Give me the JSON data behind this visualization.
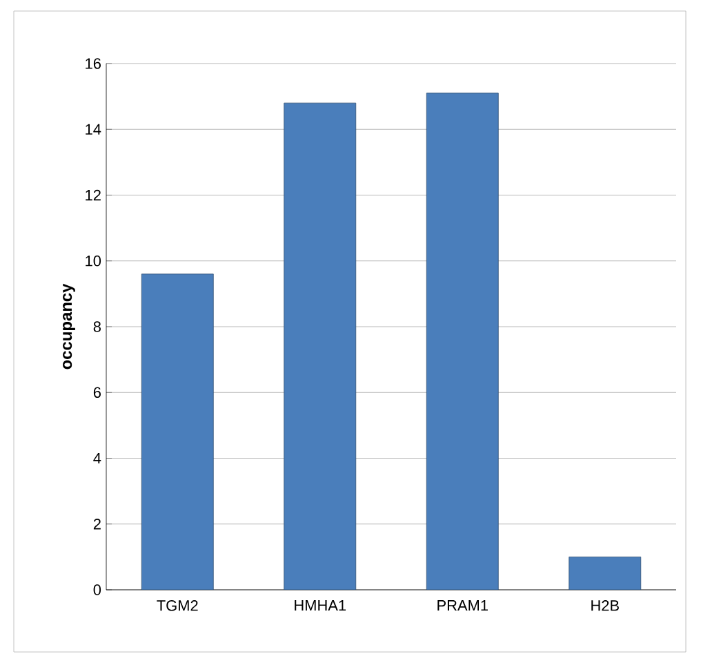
{
  "chart_data": {
    "type": "bar",
    "ylabel": "occupancy",
    "categories": [
      "TGM2",
      "HMHA1",
      "PRAM1",
      "H2B"
    ],
    "values": [
      9.6,
      14.8,
      15.1,
      1.0
    ],
    "color": "#4a7ebb",
    "ylim": [
      0,
      16
    ],
    "yticks": [
      0,
      2,
      4,
      6,
      8,
      10,
      12,
      14,
      16
    ],
    "grid": "y"
  }
}
